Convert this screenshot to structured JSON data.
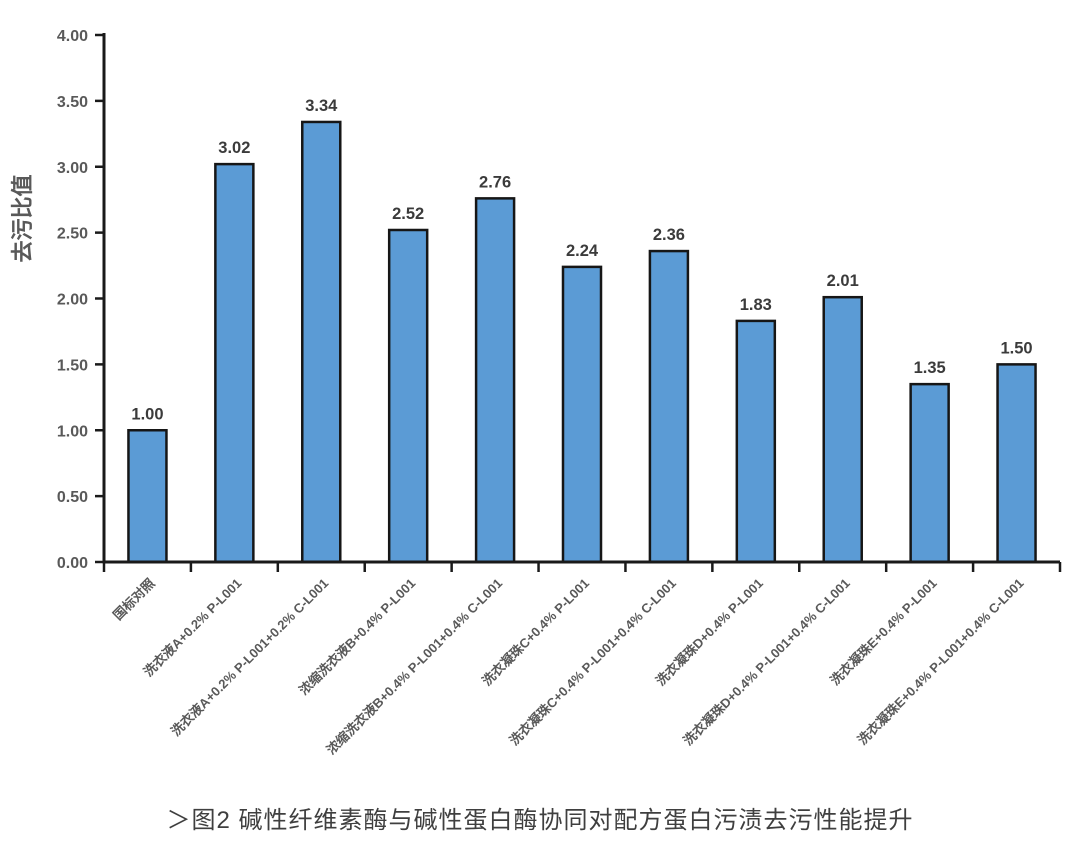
{
  "chart_data": {
    "type": "bar",
    "title": "",
    "xlabel": "",
    "ylabel": "去污比值",
    "ylim": [
      0,
      4
    ],
    "ytick_step": 0.5,
    "ytick_labels": [
      "0.00",
      "0.50",
      "1.00",
      "1.50",
      "2.00",
      "2.50",
      "3.00",
      "3.50",
      "4.00"
    ],
    "grid": false,
    "legend_position": "none",
    "categories": [
      "国标对照",
      "洗衣液A+0.2% P-L001",
      "洗衣液A+0.2% P-L001+0.2% C-L001",
      "浓缩洗衣液B+0.4% P-L001",
      "浓缩洗衣液B+0.4% P-L001+0.4% C-L001",
      "洗衣凝珠C+0.4% P-L001",
      "洗衣凝珠C+0.4% P-L001+0.4% C-L001",
      "洗衣凝珠D+0.4% P-L001",
      "洗衣凝珠D+0.4% P-L001+0.4% C-L001",
      "洗衣凝珠E+0.4% P-L001",
      "洗衣凝珠E+0.4% P-L001+0.4% C-L001"
    ],
    "values": [
      1.0,
      3.02,
      3.34,
      2.52,
      2.76,
      2.24,
      2.36,
      1.83,
      2.01,
      1.35,
      1.5
    ],
    "value_labels": [
      "1.00",
      "3.02",
      "3.34",
      "2.52",
      "2.76",
      "2.24",
      "2.36",
      "1.83",
      "2.01",
      "1.35",
      "1.50"
    ]
  },
  "caption": "＞图2 碱性纤维素酶与碱性蛋白酶协同对配方蛋白污渍去污性能提升",
  "colors": {
    "bar_fill": "#5B9BD5",
    "bar_border": "#161616",
    "axis": "#1a1a1a",
    "tick_label": "#595959",
    "value_label": "#3b3b3b",
    "axis_title": "#595959",
    "caption_text": "#3f3f3f",
    "background": "#ffffff"
  }
}
